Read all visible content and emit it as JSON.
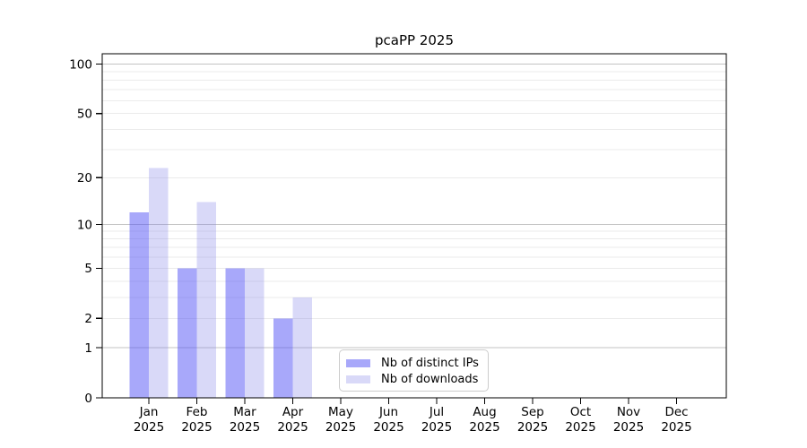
{
  "title": "pcaPP 2025",
  "chart_data": {
    "type": "bar",
    "title": "pcaPP 2025",
    "xlabel": "",
    "ylabel": "",
    "year_sublabel": "2025",
    "categories": [
      "Jan",
      "Feb",
      "Mar",
      "Apr",
      "May",
      "Jun",
      "Jul",
      "Aug",
      "Sep",
      "Oct",
      "Nov",
      "Dec"
    ],
    "series": [
      {
        "name": "Nb of distinct IPs",
        "color": "rgba(81,81,245,0.5)",
        "values": [
          12,
          5,
          5,
          2,
          0,
          0,
          0,
          0,
          0,
          0,
          0,
          0
        ]
      },
      {
        "name": "Nb of downloads",
        "color": "rgba(128,128,232,0.3)",
        "values": [
          23,
          14,
          5,
          3,
          0,
          0,
          0,
          0,
          0,
          0,
          0,
          0
        ]
      }
    ],
    "yscale": "log1p",
    "ylim": [
      0,
      115.6
    ],
    "yticks": [
      0,
      1,
      2,
      5,
      10,
      20,
      50,
      100
    ],
    "gridlines": {
      "major": [
        1,
        10,
        100
      ],
      "light": [
        2,
        3,
        4,
        5,
        6,
        7,
        8,
        9,
        20,
        30,
        40,
        50,
        60,
        70,
        80,
        90
      ]
    },
    "grid": true,
    "legend_position": "lower-center"
  },
  "colors": {
    "grid_major": "#c3c3c3",
    "grid_light": "#ebebeb",
    "axis": "#000000",
    "legend_border": "#cccccc"
  }
}
